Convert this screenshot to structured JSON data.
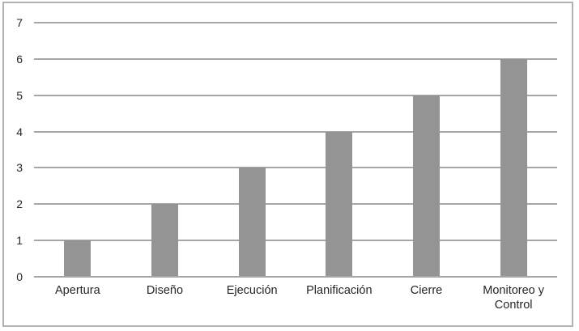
{
  "chart_data": {
    "type": "bar",
    "title": "",
    "xlabel": "",
    "ylabel": "",
    "categories": [
      "Apertura",
      "Diseño",
      "Ejecución",
      "Planificación",
      "Cierre",
      "Monitoreo y Control"
    ],
    "values": [
      1,
      2,
      3,
      4,
      5,
      6
    ],
    "ylim": [
      0,
      7
    ],
    "yticks": [
      0,
      1,
      2,
      3,
      4,
      5,
      6,
      7
    ],
    "grid": true,
    "legend": false,
    "colors": {
      "bar": "#949494",
      "gridline": "#a6a6a6",
      "axis_line": "#a6a6a6",
      "text": "#262626",
      "frame_border": "#b2b2b2",
      "background": "#ffffff"
    }
  }
}
